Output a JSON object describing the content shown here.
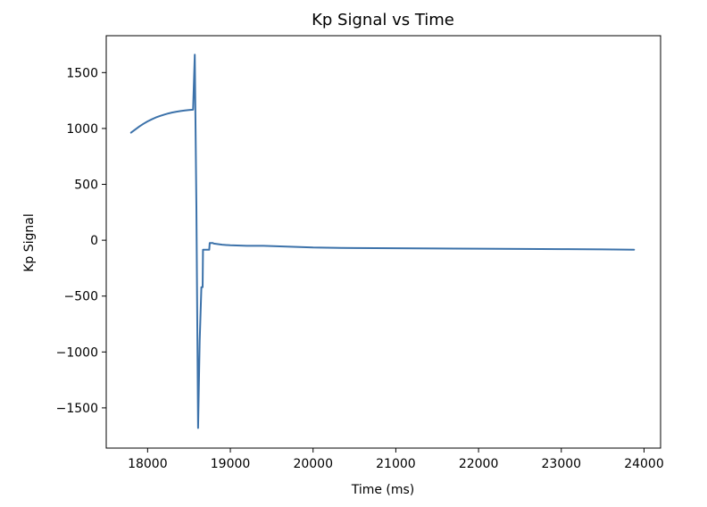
{
  "chart_data": {
    "type": "line",
    "title": "Kp Signal vs Time",
    "xlabel": "Time (ms)",
    "ylabel": "Kp Signal",
    "xlim": [
      17500,
      24200
    ],
    "ylim": [
      -1860,
      1830
    ],
    "xticks": [
      18000,
      19000,
      20000,
      21000,
      22000,
      23000,
      24000
    ],
    "xtick_labels": [
      "18000",
      "19000",
      "20000",
      "21000",
      "22000",
      "23000",
      "24000"
    ],
    "yticks": [
      1500,
      1000,
      500,
      0,
      -500,
      -1000,
      -1500
    ],
    "ytick_labels": [
      "1500",
      "1000",
      "500",
      "0",
      "−500",
      "−1000",
      "−1500"
    ],
    "grid": false,
    "series": [
      {
        "color": "#3c72aa",
        "x": [
          17800,
          17850,
          17900,
          17950,
          18000,
          18050,
          18100,
          18150,
          18200,
          18250,
          18300,
          18350,
          18400,
          18450,
          18500,
          18550,
          18570,
          18590,
          18610,
          18630,
          18650,
          18655,
          18665,
          18670,
          18675,
          18745,
          18750,
          18790,
          18800,
          18900,
          19000,
          19200,
          19400,
          19600,
          19800,
          20000,
          20500,
          21000,
          21500,
          22000,
          22500,
          23000,
          23500,
          23880
        ],
        "y": [
          963,
          990,
          1018,
          1042,
          1063,
          1082,
          1098,
          1112,
          1124,
          1134,
          1143,
          1150,
          1156,
          1161,
          1165,
          1168,
          1660,
          300,
          -1680,
          -900,
          -420,
          -420,
          -420,
          -85,
          -85,
          -85,
          -25,
          -25,
          -30,
          -40,
          -45,
          -50,
          -50,
          -55,
          -60,
          -65,
          -70,
          -72,
          -74,
          -76,
          -78,
          -80,
          -82,
          -85
        ]
      }
    ]
  }
}
